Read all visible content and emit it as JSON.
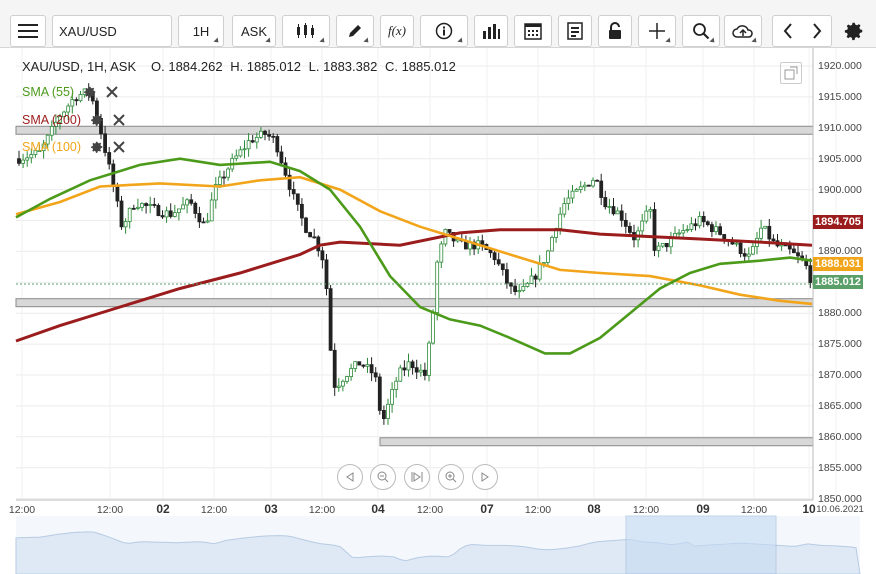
{
  "toolbar": {
    "symbol": "XAU/USD",
    "interval": "1H",
    "price_type": "ASK",
    "icons": [
      "hamburger-menu-icon",
      "candlestick-icon",
      "pencil-icon",
      "function-icon",
      "info-icon",
      "bar-chart-icon",
      "calendar-icon",
      "document-icon",
      "lock-icon",
      "crosshair-icon",
      "zoom-icon",
      "cloud-upload-icon",
      "chevron-left-icon",
      "chevron-right-icon",
      "gear-icon"
    ],
    "function_label": "f(x)"
  },
  "header": {
    "instrument": "XAU/USD, 1H, ASK",
    "open": "O. 1884.262",
    "high": "H. 1885.012",
    "low": "L. 1883.382",
    "close": "C. 1885.012"
  },
  "indicators": [
    {
      "label": "SMA (55)",
      "color": "#4c9a1a"
    },
    {
      "label": "SMA (200)",
      "color": "#9b1c1c"
    },
    {
      "label": "SMA (100)",
      "color": "#f2a51a"
    }
  ],
  "price_tags": [
    {
      "value": "1894.705",
      "color": "#9b1c1c",
      "price": 1894.705
    },
    {
      "value": "1888.031",
      "color": "#f2a51a",
      "price": 1888.031
    },
    {
      "value": "1885.012",
      "color": "#5a9e68",
      "price": 1885.012
    }
  ],
  "y_axis": [
    "1920.000",
    "1915.000",
    "1910.000",
    "1905.000",
    "1900.000",
    "1895.000",
    "1890.000",
    "1885.000",
    "1880.000",
    "1875.000",
    "1870.000",
    "1865.000",
    "1860.000",
    "1855.000",
    "1850.000"
  ],
  "x_axis": [
    {
      "label": "12:00",
      "day": false
    },
    {
      "label": "12:00",
      "day": false
    },
    {
      "label": "02",
      "day": true
    },
    {
      "label": "12:00",
      "day": false
    },
    {
      "label": "03",
      "day": true
    },
    {
      "label": "12:00",
      "day": false
    },
    {
      "label": "04",
      "day": true
    },
    {
      "label": "12:00",
      "day": false
    },
    {
      "label": "07",
      "day": true
    },
    {
      "label": "12:00",
      "day": false
    },
    {
      "label": "08",
      "day": true
    },
    {
      "label": "12:00",
      "day": false
    },
    {
      "label": "09",
      "day": true
    },
    {
      "label": "12:00",
      "day": false
    },
    {
      "label": "10",
      "day": true
    },
    {
      "label": "10.06.2021",
      "day": false
    }
  ],
  "horizontal_levels": [
    1909.6,
    1881.7,
    1859.2
  ],
  "nav_buttons": [
    "prev-icon",
    "zoom-out-icon",
    "fit-icon",
    "zoom-in-icon",
    "next-icon"
  ],
  "colors": {
    "sma55": "#4c9a1a",
    "sma200": "#9b1c1c",
    "sma100": "#f2a51a",
    "up": "#2e8b3a",
    "down": "#222222",
    "last_price": "#5a9e68"
  }
}
